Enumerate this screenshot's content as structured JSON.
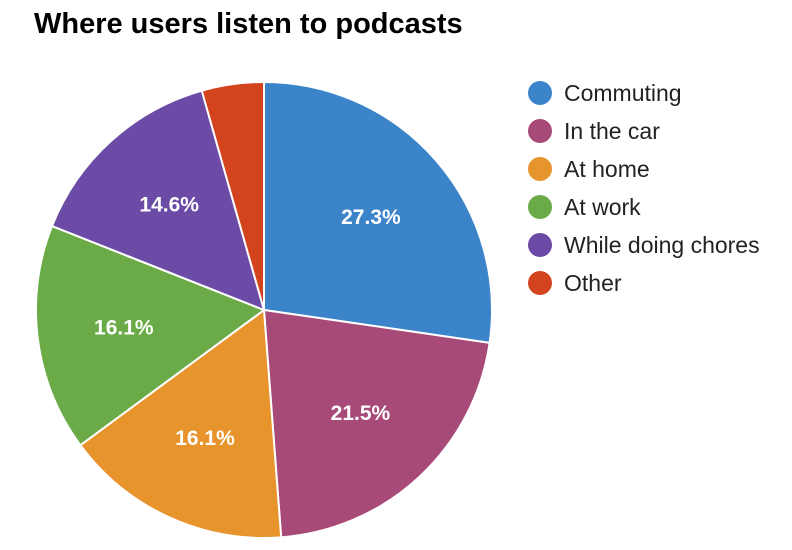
{
  "chart_data": {
    "type": "pie",
    "title": "Where users listen to podcasts",
    "legend_position": "right",
    "slices": [
      {
        "name": "Commuting",
        "value": 27.3,
        "label": "27.3%",
        "color": "#3C84C9"
      },
      {
        "name": "In the car",
        "value": 21.5,
        "label": "21.5%",
        "color": "#A74A78"
      },
      {
        "name": "At home",
        "value": 16.1,
        "label": "16.1%",
        "color": "#E8942C"
      },
      {
        "name": "At work",
        "value": 16.1,
        "label": "16.1%",
        "color": "#6AAB47"
      },
      {
        "name": "While doing chores",
        "value": 14.6,
        "label": "14.6%",
        "color": "#6B4BA5"
      },
      {
        "name": "Other",
        "value": 4.4,
        "label": "",
        "color": "#D2431E"
      }
    ]
  }
}
